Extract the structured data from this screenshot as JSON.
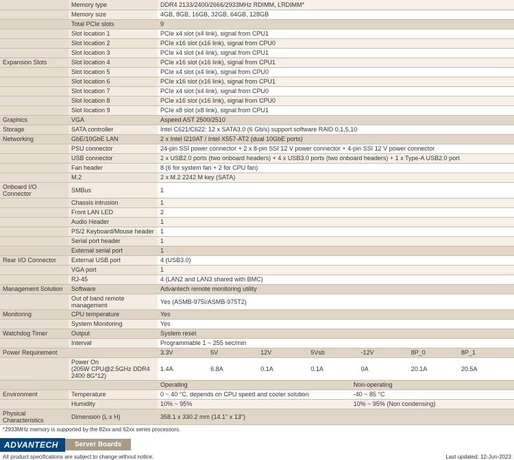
{
  "rows": [
    {
      "cat": "",
      "sub": "Memory type",
      "val": "DDR4 2133/2400/2666/2933MHz RDIMM, LRDIMM*",
      "alt": true
    },
    {
      "cat": "",
      "sub": "Memory size",
      "val": "4GB, 8GB, 16GB, 32GB, 64GB, 128GB"
    },
    {
      "cat": "",
      "sub": "Total PCIe slots",
      "val": "9",
      "band": true
    },
    {
      "cat": "",
      "sub": "Slot location 1",
      "val": "PCIe x4 slot (x4 link), signal from CPU1"
    },
    {
      "cat": "",
      "sub": "Slot location 2",
      "val": "PCIe x16 slot (x16 link), signal from CPU0",
      "alt": true
    },
    {
      "cat": "",
      "sub": "Slot location 3",
      "val": "PCIe x4 slot (x4 link), signal from CPU1"
    },
    {
      "cat": "Expansion Slots",
      "sub": "Slot location 4",
      "val": "PCIe x16 slot (x16 link), signal from CPU1",
      "alt": true
    },
    {
      "cat": "",
      "sub": "Slot location 5",
      "val": "PCIe x4 slot (x4 link), signal from CPU0"
    },
    {
      "cat": "",
      "sub": "Slot location 6",
      "val": "PCIe x16 slot (x16 link), signal from CPU1",
      "alt": true
    },
    {
      "cat": "",
      "sub": "Slot location 7",
      "val": "PCIe x4 slot (x4 link), signal from CPU0"
    },
    {
      "cat": "",
      "sub": "Slot location 8",
      "val": "PCIe x16 slot (x16 link), signal from CPU0",
      "alt": true
    },
    {
      "cat": "",
      "sub": "Slot location 9",
      "val": "PCIe x8 slot (x8 link), signal from CPU1"
    },
    {
      "cat": "Graphics",
      "sub": "VGA",
      "val": "Aspeed AST 2500/2510",
      "band": true
    },
    {
      "cat": "Storage",
      "sub": "SATA controller",
      "val": "Intel C621/C622: 12 x SATA3.0 (6 Gb/s) support software RAID 0,1,5,10"
    },
    {
      "cat": "Networking",
      "sub": "GbE/10GbE LAN",
      "val": "2 x Intel I210AT / Intel X557-AT2 (dual 10GbE ports)",
      "band": true
    },
    {
      "cat": "",
      "sub": "PSU connector",
      "val": "24-pin SSI power connector + 2 x 8-pin SSI 12 V power connector + 4-pin SSI 12 V power connector"
    },
    {
      "cat": "",
      "sub": "USB connector",
      "val": "2 x USB2.0 ports (two onboard headers) + 4 x USB3.0 ports (two onboard headers) + 1 x Type-A USB2.0 port",
      "alt": true
    },
    {
      "cat": "",
      "sub": "Fan header",
      "val": "8 (6 for system fan + 2 for CPU fan)"
    },
    {
      "cat": "",
      "sub": "M.2",
      "val": "2 x M.2 2242 M key (SATA)",
      "alt": true
    },
    {
      "cat": "Onboard I/O Connector",
      "sub": "SMBus",
      "val": "1"
    },
    {
      "cat": "",
      "sub": "Chassis intrusion",
      "val": "1",
      "alt": true
    },
    {
      "cat": "",
      "sub": "Front LAN LED",
      "val": "2"
    },
    {
      "cat": "",
      "sub": "Audio Header",
      "val": "1",
      "alt": true
    },
    {
      "cat": "",
      "sub": "PS/2 Keyboard/Mouse header",
      "val": "1"
    },
    {
      "cat": "",
      "sub": "Serial port header",
      "val": "1",
      "alt": true
    },
    {
      "cat": "",
      "sub": "External serial port",
      "val": "1",
      "band": true
    },
    {
      "cat": "Rear I/O Connector",
      "sub": "External USB port",
      "val": "4 (USB3.0)"
    },
    {
      "cat": "",
      "sub": "VGA port",
      "val": "1",
      "alt": true
    },
    {
      "cat": "",
      "sub": "RJ-45",
      "val": "4 (LAN2 and LAN3 shared with BMC)"
    },
    {
      "cat": "Management Solution",
      "sub": "Software",
      "val": "Advantech remote monitoring utility",
      "band": true
    },
    {
      "cat": "",
      "sub": "Out of band remote management",
      "val": "Yes (ASMB-975I/ASMB-975T2)"
    },
    {
      "cat": "Monitoring",
      "sub": "CPU temperature",
      "val": "Yes",
      "band": true
    },
    {
      "cat": "",
      "sub": "System Monitoring",
      "val": "Yes"
    },
    {
      "cat": "Watchdog Timer",
      "sub": "Output",
      "val": "System reset",
      "band": true
    },
    {
      "cat": "",
      "sub": "Interval",
      "val": "Programmable 1 ~ 255 sec/min"
    },
    {
      "cat": "Power Requirement",
      "sub": "",
      "multi": [
        "3.3V",
        "5V",
        "12V",
        "5Vsb",
        "-12V",
        "8P_0",
        "8P_1"
      ],
      "band": true
    },
    {
      "cat": "",
      "sub": "Power On\n(205W CPU@2.5GHz DDR4 2400 8G*12)",
      "multi": [
        "1.4A",
        "6.8A",
        "0.1A",
        "0.1A",
        "0A",
        "20.1A",
        "20.5A"
      ],
      "tall": true
    },
    {
      "cat": "",
      "sub": "",
      "multi2": [
        {
          "t": "Operating",
          "w": "55%"
        },
        {
          "t": "Non-operating",
          "w": "45%"
        }
      ],
      "band": true
    },
    {
      "cat": "Environment",
      "sub": "Temperature",
      "multi2": [
        {
          "t": "0 ~ 40 °C, depends on CPU speed and cooler solution",
          "w": "55%"
        },
        {
          "t": "-40 ~ 85 °C",
          "w": "45%"
        }
      ]
    },
    {
      "cat": "",
      "sub": "Humidity",
      "multi2": [
        {
          "t": "10% ~ 95%",
          "w": "55%"
        },
        {
          "t": "10% ~ 95% (Non condensing)",
          "w": "45%"
        }
      ],
      "alt": true
    },
    {
      "cat": "Physical Characteristics",
      "sub": "Dimension (L x H)",
      "val": "358.1 x 330.2 mm (14.1\" x 13\")",
      "band": true
    }
  ],
  "footnote": "*2933MHz memory is supported by the 82xx and 62xx series processors.",
  "logo": "ADVANTECH",
  "footer_tab": "Server Boards",
  "bottom_left": "All product specifications are subject to change without notice.",
  "bottom_right": "Last updated: 12-Jun-2023"
}
